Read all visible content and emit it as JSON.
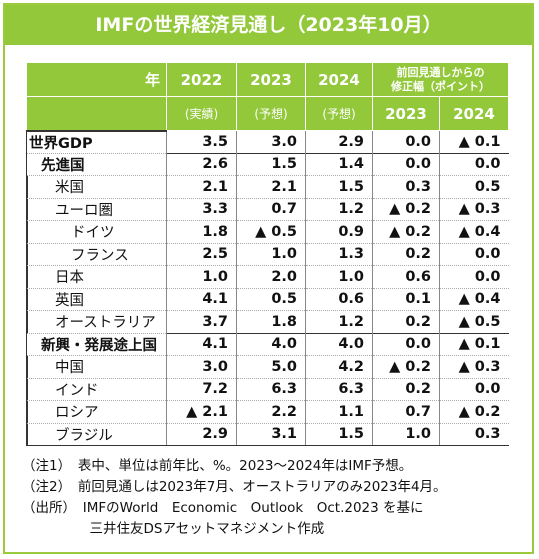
{
  "title": "IMFの世界経済見通し（2023年10月）",
  "header": {
    "year_label": "年",
    "col_2022": "2022",
    "col_2023": "2023",
    "col_2024": "2024",
    "revision_label_line1": "前回見通しからの",
    "revision_label_line2": "修正幅（ポイント）",
    "sub_2022": "(実績)",
    "sub_2023": "(予想)",
    "sub_2024": "(予想)",
    "rev_2023": "2023",
    "rev_2024": "2024"
  },
  "rows": [
    {
      "label": "世界GDP",
      "v2022": "3.5",
      "v2023": "3.0",
      "v2024": "2.9",
      "r2023": "0.0",
      "r2024": "▲ 0.1",
      "level": 0
    },
    {
      "label": "先進国",
      "v2022": "2.6",
      "v2023": "1.5",
      "v2024": "1.4",
      "r2023": "0.0",
      "r2024": "0.0",
      "level": 1
    },
    {
      "label": "米国",
      "v2022": "2.1",
      "v2023": "2.1",
      "v2024": "1.5",
      "r2023": "0.3",
      "r2024": "0.5",
      "level": 2
    },
    {
      "label": "ユーロ圏",
      "v2022": "3.3",
      "v2023": "0.7",
      "v2024": "1.2",
      "r2023": "▲ 0.2",
      "r2024": "▲ 0.3",
      "level": 2
    },
    {
      "label": "ドイツ",
      "v2022": "1.8",
      "v2023": "▲ 0.5",
      "v2024": "0.9",
      "r2023": "▲ 0.2",
      "r2024": "▲ 0.4",
      "level": 3
    },
    {
      "label": "フランス",
      "v2022": "2.5",
      "v2023": "1.0",
      "v2024": "1.3",
      "r2023": "0.2",
      "r2024": "0.0",
      "level": 3
    },
    {
      "label": "日本",
      "v2022": "1.0",
      "v2023": "2.0",
      "v2024": "1.0",
      "r2023": "0.6",
      "r2024": "0.0",
      "level": 2
    },
    {
      "label": "英国",
      "v2022": "4.1",
      "v2023": "0.5",
      "v2024": "0.6",
      "r2023": "0.1",
      "r2024": "▲ 0.4",
      "level": 2
    },
    {
      "label": "オーストラリア",
      "v2022": "3.7",
      "v2023": "1.8",
      "v2024": "1.2",
      "r2023": "0.2",
      "r2024": "▲ 0.5",
      "level": 2
    },
    {
      "label": "新興・発展途上国",
      "v2022": "4.1",
      "v2023": "4.0",
      "v2024": "4.0",
      "r2023": "0.0",
      "r2024": "▲ 0.1",
      "level": 1
    },
    {
      "label": "中国",
      "v2022": "3.0",
      "v2023": "5.0",
      "v2024": "4.2",
      "r2023": "▲ 0.2",
      "r2024": "▲ 0.3",
      "level": 2
    },
    {
      "label": "インド",
      "v2022": "7.2",
      "v2023": "6.3",
      "v2024": "6.3",
      "r2023": "0.2",
      "r2024": "0.0",
      "level": 2
    },
    {
      "label": "ロシア",
      "v2022": "▲ 2.1",
      "v2023": "2.2",
      "v2024": "1.1",
      "r2023": "0.7",
      "r2024": "▲ 0.2",
      "level": 2
    },
    {
      "label": "ブラジル",
      "v2022": "2.9",
      "v2023": "3.1",
      "v2024": "1.5",
      "r2023": "1.0",
      "r2024": "0.3",
      "level": 2
    }
  ],
  "notes": [
    "（注1）　表中、単位は前年比、%。2023～2024年はIMF予想。",
    "（注2）　前回見通しは2023年7月、オーストラリアのみ2023年4月。",
    "（出所）　IMFのWorld　Economic　Outlook　Oct.2023 を基に",
    "　　　　　三井住友DSアセットマネジメント作成"
  ]
}
